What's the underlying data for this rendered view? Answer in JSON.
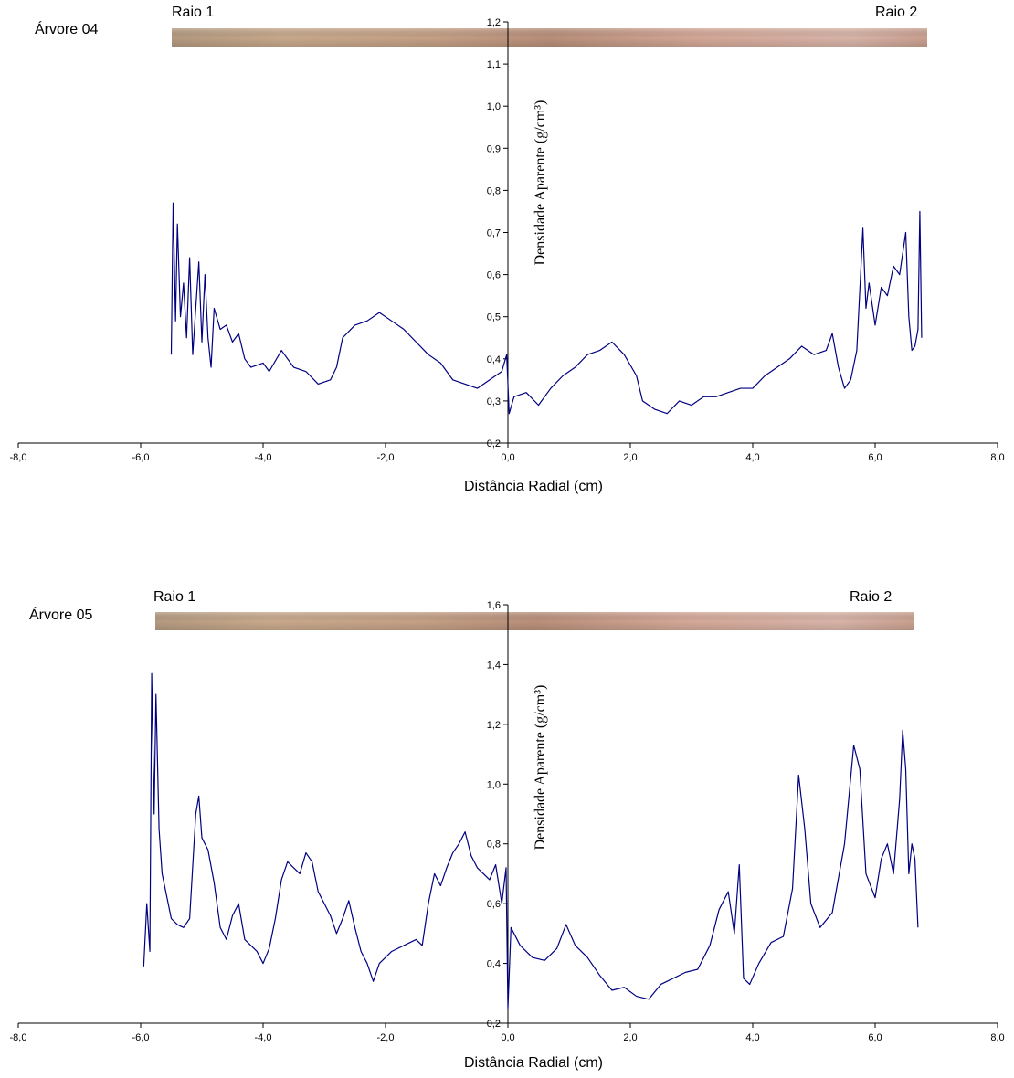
{
  "chart_data": [
    {
      "type": "line",
      "title": "Árvore 04",
      "annotations": [
        "Raio 1",
        "Raio 2"
      ],
      "xlabel": "Distância Radial (cm)",
      "ylabel": "Densidade Aparente (g/cm³)",
      "xlim": [
        -8,
        8
      ],
      "ylim": [
        0.2,
        1.2
      ],
      "xticks": [
        {
          "value": -8,
          "label": "-8,0"
        },
        {
          "value": -6,
          "label": "-6,0"
        },
        {
          "value": -4,
          "label": "-4,0"
        },
        {
          "value": -2,
          "label": "-2,0"
        },
        {
          "value": 0,
          "label": "0,0"
        },
        {
          "value": 2,
          "label": "2,0"
        },
        {
          "value": 4,
          "label": "4,0"
        },
        {
          "value": 6,
          "label": "6,0"
        },
        {
          "value": 8,
          "label": "8,0"
        }
      ],
      "yticks": [
        {
          "value": 0.2,
          "label": "0,2"
        },
        {
          "value": 0.3,
          "label": "0,3"
        },
        {
          "value": 0.4,
          "label": "0,4"
        },
        {
          "value": 0.5,
          "label": "0,5"
        },
        {
          "value": 0.6,
          "label": "0,6"
        },
        {
          "value": 0.7,
          "label": "0,7"
        },
        {
          "value": 0.8,
          "label": "0,8"
        },
        {
          "value": 0.9,
          "label": "0,9"
        },
        {
          "value": 1.0,
          "label": "1,0"
        },
        {
          "value": 1.1,
          "label": "1,1"
        },
        {
          "value": 1.2,
          "label": "1,2"
        }
      ],
      "series": [
        {
          "color": "#000080",
          "x": [
            -5.5,
            -5.47,
            -5.43,
            -5.4,
            -5.35,
            -5.3,
            -5.25,
            -5.2,
            -5.15,
            -5.1,
            -5.05,
            -5.0,
            -4.95,
            -4.9,
            -4.85,
            -4.8,
            -4.7,
            -4.6,
            -4.5,
            -4.4,
            -4.3,
            -4.2,
            -4.0,
            -3.9,
            -3.7,
            -3.5,
            -3.3,
            -3.1,
            -2.9,
            -2.8,
            -2.7,
            -2.5,
            -2.3,
            -2.1,
            -1.9,
            -1.7,
            -1.5,
            -1.3,
            -1.1,
            -0.9,
            -0.7,
            -0.5,
            -0.3,
            -0.1,
            -0.02,
            0.02,
            0.1,
            0.3,
            0.5,
            0.7,
            0.9,
            1.1,
            1.3,
            1.5,
            1.7,
            1.9,
            2.1,
            2.2,
            2.4,
            2.6,
            2.8,
            3.0,
            3.2,
            3.4,
            3.6,
            3.8,
            4.0,
            4.2,
            4.4,
            4.6,
            4.8,
            5.0,
            5.2,
            5.3,
            5.4,
            5.5,
            5.6,
            5.7,
            5.8,
            5.85,
            5.9,
            6.0,
            6.1,
            6.2,
            6.3,
            6.4,
            6.5,
            6.55,
            6.6,
            6.65,
            6.7,
            6.73,
            6.76
          ],
          "values": [
            0.41,
            0.77,
            0.49,
            0.72,
            0.5,
            0.58,
            0.45,
            0.64,
            0.41,
            0.52,
            0.63,
            0.44,
            0.6,
            0.45,
            0.38,
            0.52,
            0.47,
            0.48,
            0.44,
            0.46,
            0.4,
            0.38,
            0.39,
            0.37,
            0.42,
            0.38,
            0.37,
            0.34,
            0.35,
            0.38,
            0.45,
            0.48,
            0.49,
            0.51,
            0.49,
            0.47,
            0.44,
            0.41,
            0.39,
            0.35,
            0.34,
            0.33,
            0.35,
            0.37,
            0.41,
            0.27,
            0.31,
            0.32,
            0.29,
            0.33,
            0.36,
            0.38,
            0.41,
            0.42,
            0.44,
            0.41,
            0.36,
            0.3,
            0.28,
            0.27,
            0.3,
            0.29,
            0.31,
            0.31,
            0.32,
            0.33,
            0.33,
            0.36,
            0.38,
            0.4,
            0.43,
            0.41,
            0.42,
            0.46,
            0.38,
            0.33,
            0.35,
            0.42,
            0.71,
            0.52,
            0.58,
            0.48,
            0.57,
            0.55,
            0.62,
            0.6,
            0.7,
            0.5,
            0.42,
            0.43,
            0.47,
            0.75,
            0.45
          ]
        }
      ]
    },
    {
      "type": "line",
      "title": "Árvore 05",
      "annotations": [
        "Raio 1",
        "Raio 2"
      ],
      "xlabel": "Distância Radial (cm)",
      "ylabel": "Densidade Aparente (g/cm³)",
      "xlim": [
        -8,
        8
      ],
      "ylim": [
        0.2,
        1.6
      ],
      "xticks": [
        {
          "value": -8,
          "label": "-8,0"
        },
        {
          "value": -6,
          "label": "-6,0"
        },
        {
          "value": -4,
          "label": "-4,0"
        },
        {
          "value": -2,
          "label": "-2,0"
        },
        {
          "value": 0,
          "label": "0,0"
        },
        {
          "value": 2,
          "label": "2,0"
        },
        {
          "value": 4,
          "label": "4,0"
        },
        {
          "value": 6,
          "label": "6,0"
        },
        {
          "value": 8,
          "label": "8,0"
        }
      ],
      "yticks": [
        {
          "value": 0.2,
          "label": "0,2"
        },
        {
          "value": 0.4,
          "label": "0,4"
        },
        {
          "value": 0.6,
          "label": "0,6"
        },
        {
          "value": 0.8,
          "label": "0,8"
        },
        {
          "value": 1.0,
          "label": "1,0"
        },
        {
          "value": 1.2,
          "label": "1,2"
        },
        {
          "value": 1.4,
          "label": "1,4"
        },
        {
          "value": 1.6,
          "label": "1,6"
        }
      ],
      "series": [
        {
          "color": "#000080",
          "x": [
            -5.95,
            -5.9,
            -5.85,
            -5.82,
            -5.78,
            -5.75,
            -5.7,
            -5.65,
            -5.6,
            -5.5,
            -5.4,
            -5.3,
            -5.2,
            -5.1,
            -5.05,
            -5.0,
            -4.9,
            -4.8,
            -4.7,
            -4.6,
            -4.5,
            -4.4,
            -4.3,
            -4.2,
            -4.1,
            -4.0,
            -3.9,
            -3.8,
            -3.7,
            -3.6,
            -3.5,
            -3.4,
            -3.3,
            -3.2,
            -3.1,
            -3.0,
            -2.9,
            -2.8,
            -2.7,
            -2.6,
            -2.5,
            -2.4,
            -2.3,
            -2.2,
            -2.1,
            -1.9,
            -1.7,
            -1.5,
            -1.4,
            -1.3,
            -1.2,
            -1.1,
            -1.0,
            -0.9,
            -0.8,
            -0.7,
            -0.6,
            -0.5,
            -0.4,
            -0.3,
            -0.2,
            -0.1,
            -0.03,
            0.0,
            0.05,
            0.2,
            0.4,
            0.6,
            0.8,
            0.95,
            1.1,
            1.3,
            1.5,
            1.7,
            1.9,
            2.1,
            2.3,
            2.5,
            2.7,
            2.9,
            3.1,
            3.3,
            3.45,
            3.6,
            3.7,
            3.78,
            3.85,
            3.95,
            4.1,
            4.3,
            4.5,
            4.65,
            4.75,
            4.85,
            4.95,
            5.1,
            5.3,
            5.5,
            5.65,
            5.75,
            5.85,
            6.0,
            6.1,
            6.2,
            6.3,
            6.4,
            6.45,
            6.5,
            6.55,
            6.6,
            6.65,
            6.7
          ],
          "values": [
            0.39,
            0.6,
            0.44,
            1.37,
            0.9,
            1.3,
            0.85,
            0.7,
            0.65,
            0.55,
            0.53,
            0.52,
            0.55,
            0.9,
            0.96,
            0.82,
            0.78,
            0.67,
            0.52,
            0.48,
            0.56,
            0.6,
            0.48,
            0.46,
            0.44,
            0.4,
            0.45,
            0.55,
            0.68,
            0.74,
            0.72,
            0.7,
            0.77,
            0.74,
            0.64,
            0.6,
            0.56,
            0.5,
            0.55,
            0.61,
            0.52,
            0.44,
            0.4,
            0.34,
            0.4,
            0.44,
            0.46,
            0.48,
            0.46,
            0.6,
            0.7,
            0.66,
            0.72,
            0.77,
            0.8,
            0.84,
            0.76,
            0.72,
            0.7,
            0.68,
            0.73,
            0.6,
            0.72,
            0.25,
            0.52,
            0.46,
            0.42,
            0.41,
            0.45,
            0.53,
            0.46,
            0.42,
            0.36,
            0.31,
            0.32,
            0.29,
            0.28,
            0.33,
            0.35,
            0.37,
            0.38,
            0.46,
            0.58,
            0.64,
            0.5,
            0.73,
            0.35,
            0.33,
            0.4,
            0.47,
            0.49,
            0.65,
            1.03,
            0.85,
            0.6,
            0.52,
            0.57,
            0.8,
            1.13,
            1.05,
            0.7,
            0.62,
            0.75,
            0.8,
            0.7,
            0.95,
            1.18,
            1.05,
            0.7,
            0.8,
            0.75,
            0.52
          ]
        }
      ]
    }
  ]
}
